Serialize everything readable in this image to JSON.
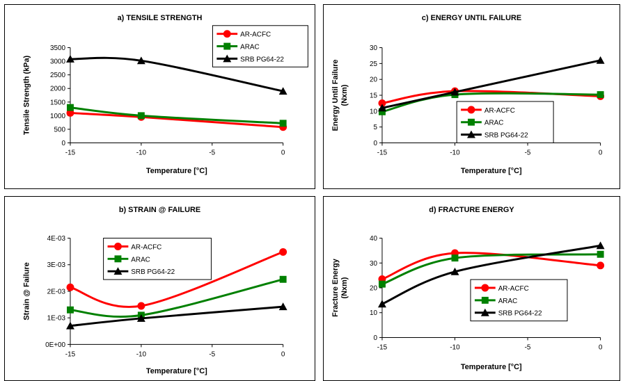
{
  "series_styles": [
    {
      "name": "AR-ACFC",
      "color": "#ff0000",
      "marker": "circle"
    },
    {
      "name": "ARAC",
      "color": "#008000",
      "marker": "square"
    },
    {
      "name": "SRB PG64-22",
      "color": "#000000",
      "marker": "triangle"
    }
  ],
  "chart_data": [
    {
      "type": "line",
      "title": "a)   TENSILE STRENGTH",
      "xlabel": "Temperature [°C]",
      "ylabel": "Tensile Strength (kPa)",
      "x": [
        -15,
        -10,
        0
      ],
      "xlim": [
        -15,
        0
      ],
      "ylim": [
        0,
        3500
      ],
      "xticks": [
        "-15",
        "-10",
        "-5",
        "0"
      ],
      "yticks": [
        "0",
        "500",
        "1000",
        "1500",
        "2000",
        "2500",
        "3000",
        "3500"
      ],
      "grid": false,
      "legend_position": "top-right",
      "series": [
        {
          "name": "AR-ACFC",
          "values": [
            1100,
            950,
            580
          ]
        },
        {
          "name": "ARAC",
          "values": [
            1300,
            1000,
            720
          ]
        },
        {
          "name": "SRB PG64-22",
          "values": [
            3080,
            3020,
            1900
          ]
        }
      ]
    },
    {
      "type": "line",
      "title": "b)   STRAIN @ FAILURE",
      "xlabel": "Temperature [°C]",
      "ylabel": "Strain @ Failure",
      "x": [
        -15,
        -10,
        0
      ],
      "xlim": [
        -15,
        0
      ],
      "ylim": [
        0,
        0.004
      ],
      "xticks": [
        "-15",
        "-10",
        "-5",
        "0"
      ],
      "yticks": [
        "0E+00",
        "1E-03",
        "2E-03",
        "3E-03",
        "4E-03"
      ],
      "grid": false,
      "legend_position": "top-left",
      "series": [
        {
          "name": "AR-ACFC",
          "values": [
            0.00215,
            0.00145,
            0.00348
          ]
        },
        {
          "name": "ARAC",
          "values": [
            0.0013,
            0.0011,
            0.00245
          ]
        },
        {
          "name": "SRB PG64-22",
          "values": [
            0.0007,
            0.00098,
            0.00142
          ]
        }
      ]
    },
    {
      "type": "line",
      "title": "c)   ENERGY UNTIL FAILURE",
      "xlabel": "Temperature [°C]",
      "ylabel_lines": [
        "Energy Until Failure",
        "(Nxm)"
      ],
      "x": [
        -15,
        -10,
        0
      ],
      "xlim": [
        -15,
        0
      ],
      "ylim": [
        0,
        30
      ],
      "xticks": [
        "-15",
        "-10",
        "-5",
        "0"
      ],
      "yticks": [
        "0",
        "5",
        "10",
        "15",
        "20",
        "25",
        "30"
      ],
      "grid": false,
      "legend_position": "bottom-center",
      "series": [
        {
          "name": "AR-ACFC",
          "values": [
            12.5,
            16.3,
            14.7
          ]
        },
        {
          "name": "ARAC",
          "values": [
            9.8,
            15.2,
            15.2
          ]
        },
        {
          "name": "SRB PG64-22",
          "values": [
            11.0,
            16.0,
            26.0
          ]
        }
      ]
    },
    {
      "type": "line",
      "title": "d)   FRACTURE ENERGY",
      "xlabel": "Temperature [°C]",
      "ylabel_lines": [
        "Fracture Energy",
        "(Nxm)"
      ],
      "x": [
        -15,
        -10,
        0
      ],
      "xlim": [
        -15,
        0
      ],
      "ylim": [
        0,
        40
      ],
      "xticks": [
        "-15",
        "-10",
        "-5",
        "0"
      ],
      "yticks": [
        "0",
        "10",
        "20",
        "30",
        "40"
      ],
      "grid": false,
      "legend_position": "bottom-center",
      "series": [
        {
          "name": "AR-ACFC",
          "values": [
            23.5,
            34.0,
            29.0
          ]
        },
        {
          "name": "ARAC",
          "values": [
            21.5,
            32.0,
            33.5
          ]
        },
        {
          "name": "SRB PG64-22",
          "values": [
            13.5,
            26.5,
            37.0
          ]
        }
      ]
    }
  ]
}
